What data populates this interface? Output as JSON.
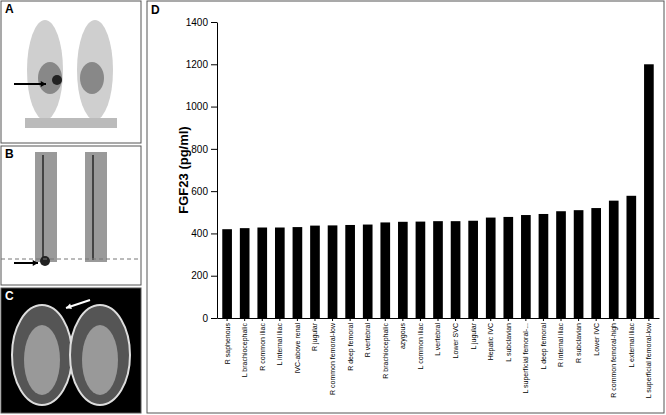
{
  "panels": [
    "A",
    "B",
    "C",
    "D"
  ],
  "chart_data": {
    "type": "bar",
    "ylabel": "FGF23 (pg/ml)",
    "categories": [
      "R saphenous",
      "L brachiocephalic",
      "R common iliac",
      "L internal iliac",
      "IVC-above renal",
      "R jugular",
      "R common femoral-low",
      "R deep femoral",
      "R vertebral",
      "R brachiocephalic",
      "azygous",
      "L common iliac",
      "L vertebral",
      "Lower SVC",
      "L jugular",
      "Hepatic IVC",
      "L subclavian",
      "L superficial femoral-...",
      "L deep femoral",
      "R internal iliac",
      "R subclavian",
      "Lower IVC",
      "R common femoral-high",
      "L external iliac",
      "L superficial femoral-low"
    ],
    "values": [
      420,
      425,
      428,
      428,
      430,
      437,
      438,
      440,
      442,
      452,
      455,
      456,
      458,
      458,
      460,
      475,
      478,
      487,
      492,
      505,
      510,
      520,
      555,
      578,
      1200
    ],
    "color": "#000000",
    "ylim": [
      0,
      1400
    ],
    "yticks": [
      0,
      200,
      400,
      600,
      800,
      1000,
      1200,
      1400
    ],
    "grid": false
  }
}
